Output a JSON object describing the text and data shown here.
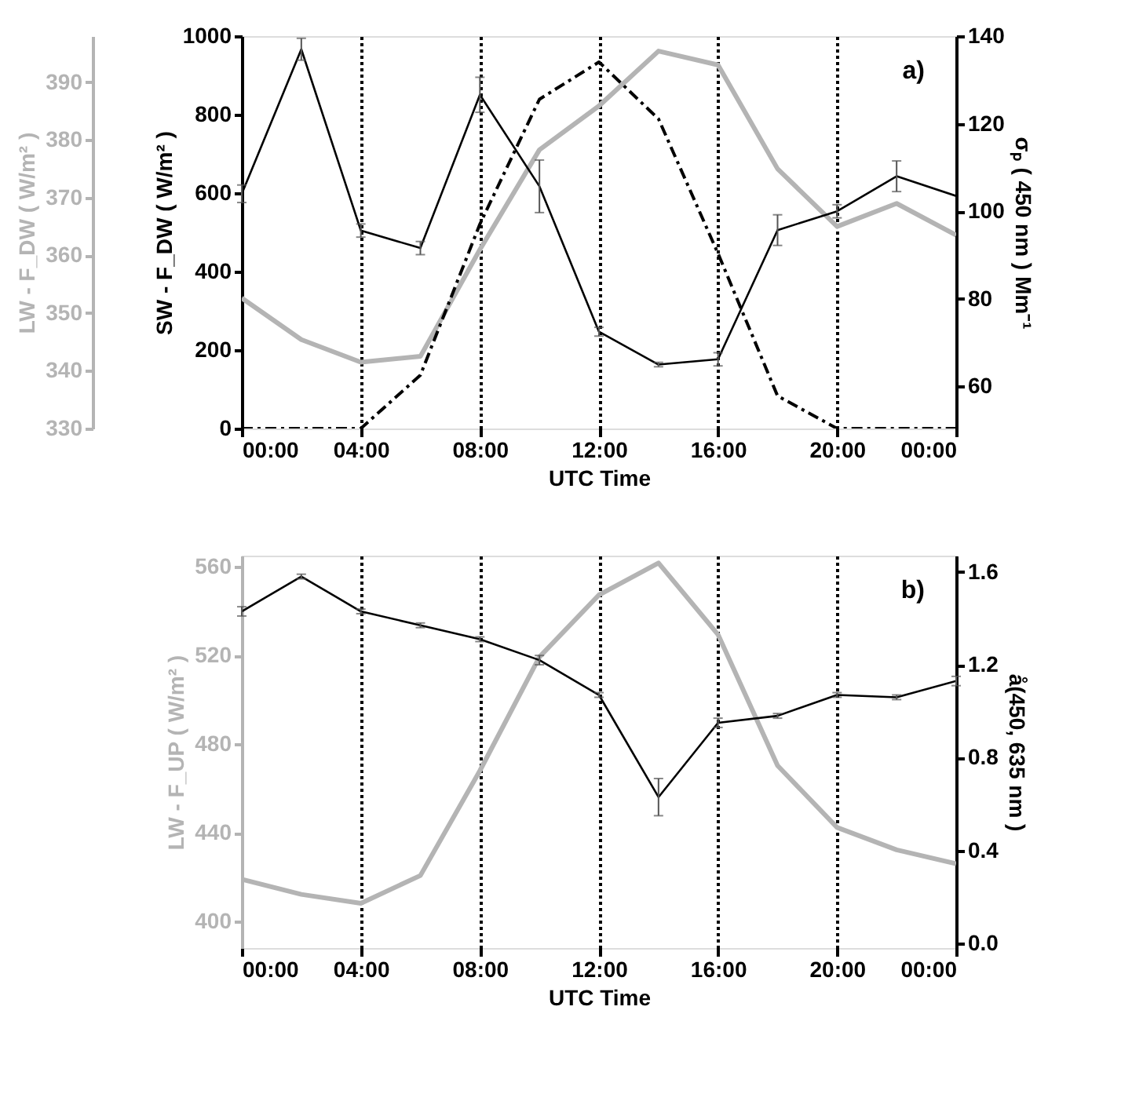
{
  "chart_data": [
    {
      "type": "line",
      "xlabel": "UTC Time",
      "ylabel": "SW - F_DW ( W/m² )",
      "y2label": "σₚ ( 450 nm ) Mm⁻¹",
      "y3label": "LW - F_DW ( W/m² )",
      "annotations": [
        "a)"
      ],
      "grid": "x",
      "x": [
        0,
        2,
        4,
        6,
        8,
        10,
        12,
        14,
        16,
        18,
        20,
        22,
        24
      ],
      "xlim": [
        0,
        24
      ],
      "xticks": [
        {
          "value": 0,
          "label": "00:00"
        },
        {
          "value": 4,
          "label": "04:00"
        },
        {
          "value": 8,
          "label": "08:00"
        },
        {
          "value": 12,
          "label": "12:00"
        },
        {
          "value": 16,
          "label": "16:00"
        },
        {
          "value": 20,
          "label": "20:00"
        },
        {
          "value": 24,
          "label": "00:00"
        }
      ],
      "ylim": [
        0,
        1000
      ],
      "yticks": [
        0,
        200,
        400,
        600,
        800,
        1000
      ],
      "y2lim": [
        50.4,
        140
      ],
      "y2ticks": [
        60,
        80,
        100,
        120,
        140
      ],
      "y3lim": [
        330,
        398
      ],
      "y3ticks": [
        330,
        340,
        350,
        360,
        370,
        380,
        390
      ],
      "series": [
        {
          "color": "#b4b4b4",
          "axis": "y3",
          "values": [
            352.6,
            345.4,
            341.5,
            342.5,
            361,
            378.3,
            385.9,
            395.4,
            393,
            375,
            365,
            369,
            363.5
          ]
        },
        {
          "color": "#000000",
          "axis": "y",
          "line_style": "dashed",
          "values": [
            0,
            0,
            0,
            136,
            521,
            839,
            934,
            789,
            446,
            83,
            0,
            0,
            0
          ]
        },
        {
          "color": "#000000",
          "axis": "y2",
          "values": [
            104,
            137,
            95.6,
            91.6,
            126.6,
            105.7,
            72.5,
            65,
            66.2,
            95.7,
            100,
            108,
            103.5
          ],
          "errors": [
            2,
            2.5,
            1.5,
            1.5,
            4,
            6,
            1,
            0.5,
            1.5,
            3.5,
            1.5,
            3.5,
            null
          ]
        }
      ]
    },
    {
      "type": "line",
      "xlabel": "UTC Time",
      "ylabel": "LW - F_UP ( W/m² )",
      "y2label": "å(450, 635 nm )",
      "annotations": [
        "b)"
      ],
      "grid": "x",
      "x": [
        0,
        2,
        4,
        6,
        8,
        10,
        12,
        14,
        16,
        18,
        20,
        22,
        24
      ],
      "xlim": [
        0,
        24
      ],
      "xticks": [
        {
          "value": 0,
          "label": "00:00"
        },
        {
          "value": 4,
          "label": "04:00"
        },
        {
          "value": 8,
          "label": "08:00"
        },
        {
          "value": 12,
          "label": "12:00"
        },
        {
          "value": 16,
          "label": "16:00"
        },
        {
          "value": 20,
          "label": "20:00"
        },
        {
          "value": 24,
          "label": "00:00"
        }
      ],
      "ylim": [
        388,
        565
      ],
      "yticks": [
        400,
        440,
        480,
        520,
        560
      ],
      "y2lim": [
        -0.02,
        1.67
      ],
      "y2ticks": [
        {
          "value": 0,
          "label": "0.0"
        },
        0.4,
        0.8,
        1.2,
        1.6
      ],
      "series": [
        {
          "color": "#b4b4b4",
          "axis": "y",
          "values": [
            419,
            412.2,
            408.2,
            420.7,
            468,
            519.3,
            547.3,
            561.7,
            529.4,
            470.3,
            442.4,
            432.3,
            426
          ]
        },
        {
          "color": "#000000",
          "axis": "y2",
          "values": [
            1.43,
            1.58,
            1.43,
            1.37,
            1.31,
            1.22,
            1.07,
            0.63,
            0.95,
            0.98,
            1.07,
            1.06,
            1.13
          ],
          "errors": [
            0.02,
            0.01,
            0.01,
            0.01,
            0.01,
            0.02,
            0.01,
            0.08,
            0.02,
            0.01,
            0.01,
            0.01,
            0.02
          ]
        }
      ]
    }
  ]
}
